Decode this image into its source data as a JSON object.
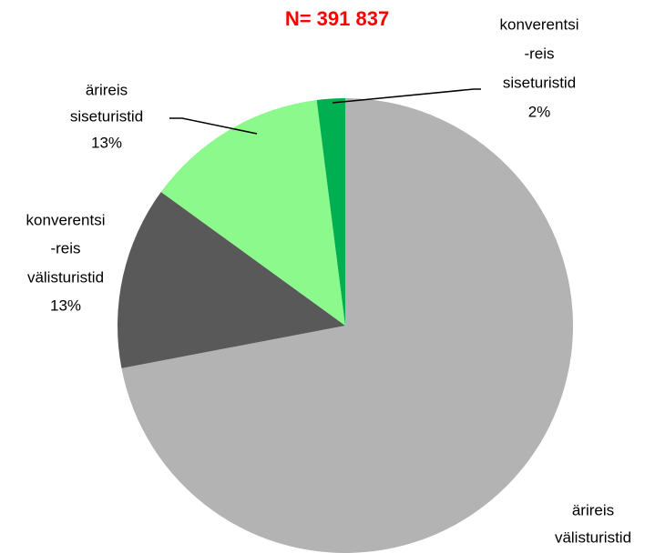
{
  "chart_data": {
    "type": "pie",
    "title": "N= 391 837",
    "categories": [
      [
        "ärireis",
        "välisturistid"
      ],
      [
        "konverentsi",
        "-reis",
        "välisturistid"
      ],
      [
        "ärireis",
        "siseturistid"
      ],
      [
        "konverentsi",
        "-reis",
        "siseturistid"
      ]
    ],
    "values": [
      72,
      13,
      13,
      2
    ],
    "value_labels": [
      "72%",
      "13%",
      "13%",
      "2%"
    ],
    "colors": [
      "#b3b3b3",
      "#595959",
      "#8cf98c",
      "#00b050"
    ]
  }
}
